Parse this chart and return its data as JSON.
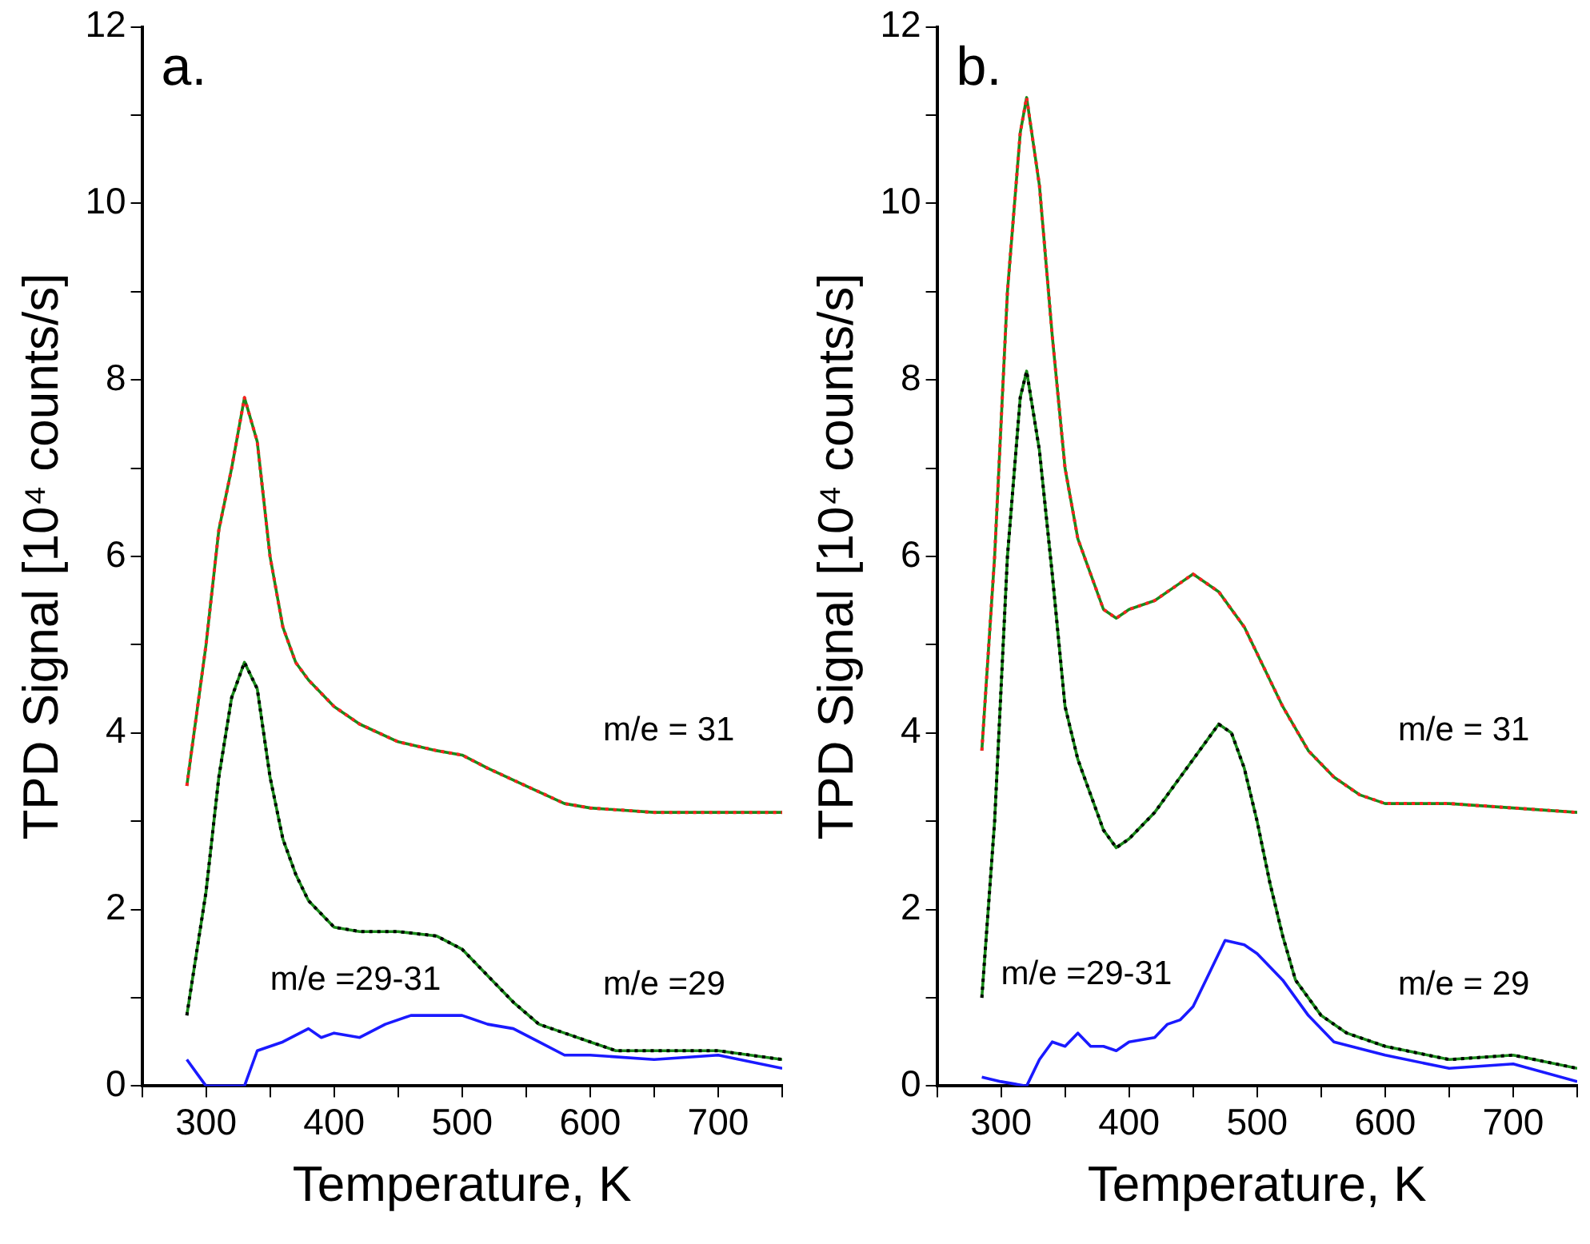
{
  "chart_data": [
    {
      "type": "line",
      "xlabel": "Temperature, K",
      "ylabel": "TPD Signal [10⁴ counts/s]",
      "xlim": [
        250,
        750
      ],
      "ylim": [
        0,
        12
      ],
      "xticks": [
        {
          "value": 250,
          "label": null
        },
        300,
        {
          "value": 350,
          "label": null
        },
        400,
        {
          "value": 450,
          "label": null
        },
        500,
        {
          "value": 550,
          "label": null
        },
        600,
        {
          "value": 650,
          "label": null
        },
        700,
        {
          "value": 750,
          "label": null
        }
      ],
      "yticks": [
        0,
        {
          "value": 1,
          "label": null
        },
        2,
        {
          "value": 3,
          "label": null
        },
        4,
        {
          "value": 5,
          "label": null
        },
        6,
        {
          "value": 7,
          "label": null
        },
        8,
        {
          "value": 9,
          "label": null
        },
        10,
        {
          "value": 11,
          "label": null
        },
        12
      ],
      "grid": false,
      "legend": false,
      "marker": "none",
      "tick_labels": true,
      "annotations": [
        "a."
      ],
      "series": [
        {
          "name": "m/e = 31",
          "color": "#ff2020",
          "line_style": "dotted",
          "x": [
            285,
            300,
            310,
            320,
            330,
            340,
            350,
            360,
            370,
            380,
            400,
            420,
            450,
            480,
            500,
            520,
            550,
            580,
            600,
            650,
            700,
            750
          ],
          "values": [
            3.4,
            5.0,
            6.3,
            7.0,
            7.8,
            7.3,
            6.0,
            5.2,
            4.8,
            4.6,
            4.3,
            4.1,
            3.9,
            3.8,
            3.75,
            3.6,
            3.4,
            3.2,
            3.15,
            3.1,
            3.1,
            3.1
          ]
        },
        {
          "name": "m/e =29",
          "color": "#000000",
          "line_style": "dotted",
          "x": [
            285,
            300,
            310,
            320,
            330,
            340,
            350,
            360,
            370,
            380,
            400,
            420,
            450,
            480,
            500,
            520,
            540,
            560,
            580,
            600,
            620,
            650,
            700,
            750
          ],
          "values": [
            0.8,
            2.2,
            3.5,
            4.4,
            4.8,
            4.5,
            3.5,
            2.8,
            2.4,
            2.1,
            1.8,
            1.75,
            1.75,
            1.7,
            1.55,
            1.25,
            0.95,
            0.7,
            0.6,
            0.5,
            0.4,
            0.4,
            0.4,
            0.3
          ]
        },
        {
          "color": "#1a8a1a",
          "line_style": "solid",
          "x": [
            285,
            300,
            310,
            320,
            330,
            340,
            350,
            360,
            370,
            380,
            400,
            420,
            450,
            480,
            500,
            520,
            550,
            580,
            600,
            650,
            700,
            750
          ],
          "values": [
            3.4,
            5.0,
            6.3,
            7.0,
            7.8,
            7.3,
            6.0,
            5.2,
            4.8,
            4.6,
            4.3,
            4.1,
            3.9,
            3.8,
            3.75,
            3.6,
            3.4,
            3.2,
            3.15,
            3.1,
            3.1,
            3.1
          ]
        },
        {
          "color": "#1a8a1a",
          "line_style": "solid",
          "x": [
            285,
            300,
            310,
            320,
            330,
            340,
            350,
            360,
            370,
            380,
            400,
            420,
            450,
            480,
            500,
            520,
            540,
            560,
            580,
            600,
            620,
            650,
            700,
            750
          ],
          "values": [
            0.8,
            2.2,
            3.5,
            4.4,
            4.8,
            4.5,
            3.5,
            2.8,
            2.4,
            2.1,
            1.8,
            1.75,
            1.75,
            1.7,
            1.55,
            1.25,
            0.95,
            0.7,
            0.6,
            0.5,
            0.4,
            0.4,
            0.4,
            0.3
          ]
        },
        {
          "name": "m/e =29-31",
          "color": "#1a1aff",
          "line_style": "solid",
          "x": [
            285,
            295,
            300,
            330,
            340,
            360,
            380,
            390,
            400,
            420,
            440,
            460,
            480,
            500,
            520,
            540,
            560,
            580,
            600,
            650,
            700,
            750
          ],
          "values": [
            0.3,
            0.1,
            0,
            0,
            0.4,
            0.5,
            0.65,
            0.55,
            0.6,
            0.55,
            0.7,
            0.8,
            0.8,
            0.8,
            0.7,
            0.65,
            0.5,
            0.35,
            0.35,
            0.3,
            0.35,
            0.2
          ]
        }
      ]
    },
    {
      "type": "line",
      "xlabel": "Temperature, K",
      "ylabel": "TPD Signal [10⁴ counts/s]",
      "xlim": [
        250,
        750
      ],
      "ylim": [
        0,
        12
      ],
      "xticks": [
        {
          "value": 250,
          "label": null
        },
        300,
        {
          "value": 350,
          "label": null
        },
        400,
        {
          "value": 450,
          "label": null
        },
        500,
        {
          "value": 550,
          "label": null
        },
        600,
        {
          "value": 650,
          "label": null
        },
        700,
        {
          "value": 750,
          "label": null
        }
      ],
      "yticks": [
        0,
        {
          "value": 1,
          "label": null
        },
        2,
        {
          "value": 3,
          "label": null
        },
        4,
        {
          "value": 5,
          "label": null
        },
        6,
        {
          "value": 7,
          "label": null
        },
        8,
        {
          "value": 9,
          "label": null
        },
        10,
        {
          "value": 11,
          "label": null
        },
        12
      ],
      "grid": false,
      "legend": false,
      "marker": "none",
      "tick_labels": true,
      "annotations": [
        "b."
      ],
      "series": [
        {
          "name": "m/e = 31",
          "color": "#ff2020",
          "line_style": "dotted",
          "x": [
            285,
            295,
            305,
            315,
            320,
            330,
            340,
            350,
            360,
            370,
            380,
            390,
            400,
            420,
            440,
            450,
            470,
            490,
            500,
            520,
            540,
            560,
            580,
            600,
            650,
            700,
            750
          ],
          "values": [
            3.8,
            6.0,
            9.0,
            10.8,
            11.2,
            10.2,
            8.5,
            7.0,
            6.2,
            5.8,
            5.4,
            5.3,
            5.4,
            5.5,
            5.7,
            5.8,
            5.6,
            5.2,
            4.9,
            4.3,
            3.8,
            3.5,
            3.3,
            3.2,
            3.2,
            3.15,
            3.1
          ]
        },
        {
          "name": "m/e = 29",
          "color": "#000000",
          "line_style": "dotted",
          "x": [
            285,
            295,
            305,
            315,
            320,
            330,
            340,
            350,
            360,
            370,
            380,
            390,
            400,
            420,
            440,
            460,
            470,
            480,
            490,
            500,
            510,
            520,
            530,
            550,
            570,
            600,
            650,
            700,
            750
          ],
          "values": [
            1.0,
            3.0,
            6.0,
            7.8,
            8.1,
            7.2,
            5.8,
            4.3,
            3.7,
            3.3,
            2.9,
            2.7,
            2.8,
            3.1,
            3.5,
            3.9,
            4.1,
            4.0,
            3.6,
            3.0,
            2.3,
            1.7,
            1.2,
            0.8,
            0.6,
            0.45,
            0.3,
            0.35,
            0.2
          ]
        },
        {
          "color": "#1a8a1a",
          "line_style": "solid",
          "x": [
            285,
            295,
            305,
            315,
            320,
            330,
            340,
            350,
            360,
            370,
            380,
            390,
            400,
            420,
            440,
            450,
            470,
            490,
            500,
            520,
            540,
            560,
            580,
            600,
            650,
            700,
            750
          ],
          "values": [
            3.8,
            6.0,
            9.0,
            10.8,
            11.2,
            10.2,
            8.5,
            7.0,
            6.2,
            5.8,
            5.4,
            5.3,
            5.4,
            5.5,
            5.7,
            5.8,
            5.6,
            5.2,
            4.9,
            4.3,
            3.8,
            3.5,
            3.3,
            3.2,
            3.2,
            3.15,
            3.1
          ]
        },
        {
          "color": "#1a8a1a",
          "line_style": "solid",
          "x": [
            285,
            295,
            305,
            315,
            320,
            330,
            340,
            350,
            360,
            370,
            380,
            390,
            400,
            420,
            440,
            460,
            470,
            480,
            490,
            500,
            510,
            520,
            530,
            550,
            570,
            600,
            650,
            700,
            750
          ],
          "values": [
            1.0,
            3.0,
            6.0,
            7.8,
            8.1,
            7.2,
            5.8,
            4.3,
            3.7,
            3.3,
            2.9,
            2.7,
            2.8,
            3.1,
            3.5,
            3.9,
            4.1,
            4.0,
            3.6,
            3.0,
            2.3,
            1.7,
            1.2,
            0.8,
            0.6,
            0.45,
            0.3,
            0.35,
            0.2
          ]
        },
        {
          "name": "m/e =29-31",
          "color": "#1a1aff",
          "line_style": "solid",
          "x": [
            285,
            300,
            320,
            330,
            340,
            350,
            360,
            370,
            380,
            390,
            400,
            420,
            430,
            440,
            450,
            460,
            470,
            475,
            490,
            500,
            520,
            540,
            560,
            600,
            650,
            700,
            750
          ],
          "values": [
            0.1,
            0.05,
            0,
            0.3,
            0.5,
            0.45,
            0.6,
            0.45,
            0.45,
            0.4,
            0.5,
            0.55,
            0.7,
            0.75,
            0.9,
            1.2,
            1.5,
            1.65,
            1.6,
            1.5,
            1.2,
            0.8,
            0.5,
            0.35,
            0.2,
            0.25,
            0.05
          ]
        }
      ]
    }
  ]
}
